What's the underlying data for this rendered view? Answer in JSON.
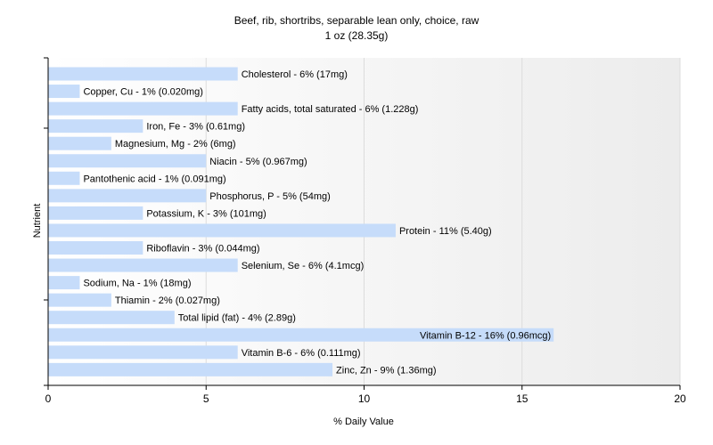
{
  "chart_data": {
    "type": "bar",
    "orientation": "horizontal",
    "title": "Beef, rib, shortribs, separable lean only, choice, raw",
    "subtitle": "1 oz (28.35g)",
    "xlabel": "% Daily Value",
    "ylabel": "Nutrient",
    "xlim": [
      0,
      20
    ],
    "xticks": [
      0,
      5,
      10,
      15,
      20
    ],
    "grid": true,
    "bar_color": "#c6dcfa",
    "categories": [
      "Cholesterol",
      "Copper, Cu",
      "Fatty acids, total saturated",
      "Iron, Fe",
      "Magnesium, Mg",
      "Niacin",
      "Pantothenic acid",
      "Phosphorus, P",
      "Potassium, K",
      "Protein",
      "Riboflavin",
      "Selenium, Se",
      "Sodium, Na",
      "Thiamin",
      "Total lipid (fat)",
      "Vitamin B-12",
      "Vitamin B-6",
      "Zinc, Zn"
    ],
    "values": [
      6,
      1,
      6,
      3,
      2,
      5,
      1,
      5,
      3,
      11,
      3,
      6,
      1,
      2,
      4,
      16,
      6,
      9
    ],
    "labels": [
      "Cholesterol - 6% (17mg)",
      "Copper, Cu - 1% (0.020mg)",
      "Fatty acids, total saturated - 6% (1.228g)",
      "Iron, Fe - 3% (0.61mg)",
      "Magnesium, Mg - 2% (6mg)",
      "Niacin - 5% (0.967mg)",
      "Pantothenic acid - 1% (0.091mg)",
      "Phosphorus, P - 5% (54mg)",
      "Potassium, K - 3% (101mg)",
      "Protein - 11% (5.40g)",
      "Riboflavin - 3% (0.044mg)",
      "Selenium, Se - 6% (4.1mcg)",
      "Sodium, Na - 1% (18mg)",
      "Thiamin - 2% (0.027mg)",
      "Total lipid (fat) - 4% (2.89g)",
      "Vitamin B-12 - 16% (0.96mcg)",
      "Vitamin B-6 - 6% (0.111mg)",
      "Zinc, Zn - 9% (1.36mg)"
    ]
  }
}
